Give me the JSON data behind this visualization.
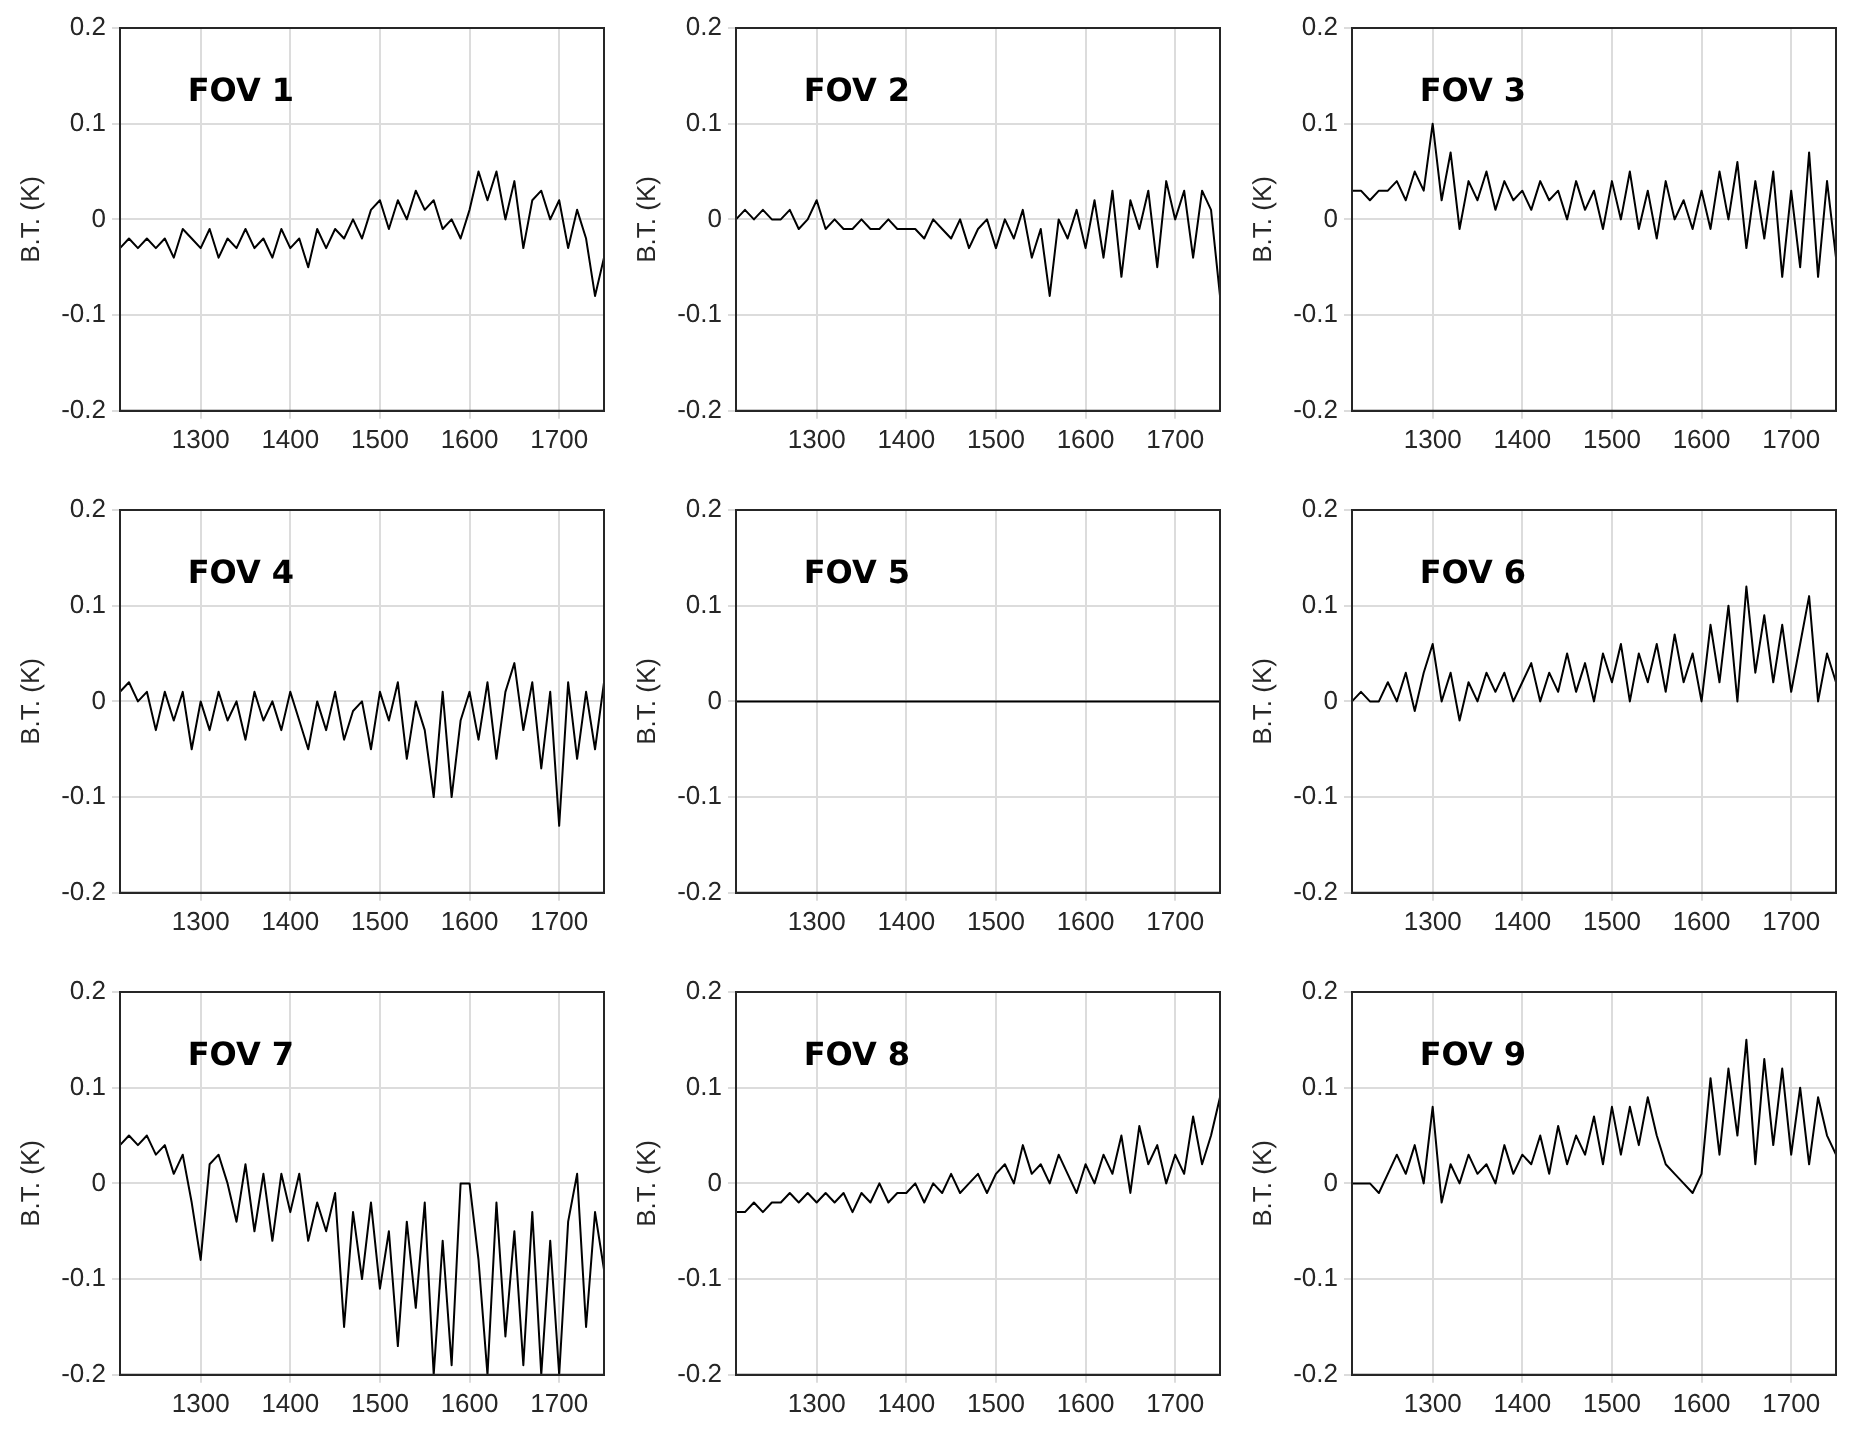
{
  "chart_data": [
    {
      "type": "line",
      "ylabel": "B.T. (K)",
      "annotations": [
        "FOV 1"
      ],
      "color": "#000000",
      "marker": "none",
      "grid": true,
      "xlim": [
        1210,
        1750
      ],
      "ylim": [
        -0.2,
        0.2
      ],
      "xticks": [
        1300,
        1400,
        1500,
        1600,
        1700
      ],
      "yticks": [
        -0.2,
        -0.1,
        0,
        0.1,
        0.2
      ],
      "x": [
        1210,
        1220,
        1230,
        1240,
        1250,
        1260,
        1270,
        1280,
        1290,
        1300,
        1310,
        1320,
        1330,
        1340,
        1350,
        1360,
        1370,
        1380,
        1390,
        1400,
        1410,
        1420,
        1430,
        1440,
        1450,
        1460,
        1470,
        1480,
        1490,
        1500,
        1510,
        1520,
        1530,
        1540,
        1550,
        1560,
        1570,
        1580,
        1590,
        1600,
        1610,
        1620,
        1630,
        1640,
        1650,
        1660,
        1670,
        1680,
        1690,
        1700,
        1710,
        1720,
        1730,
        1740,
        1750
      ],
      "values": [
        -0.03,
        -0.02,
        -0.03,
        -0.02,
        -0.03,
        -0.02,
        -0.04,
        -0.01,
        -0.02,
        -0.03,
        -0.01,
        -0.04,
        -0.02,
        -0.03,
        -0.01,
        -0.03,
        -0.02,
        -0.04,
        -0.01,
        -0.03,
        -0.02,
        -0.05,
        -0.01,
        -0.03,
        -0.01,
        -0.02,
        0.0,
        -0.02,
        0.01,
        0.02,
        -0.01,
        0.02,
        0.0,
        0.03,
        0.01,
        0.02,
        -0.01,
        0.0,
        -0.02,
        0.01,
        0.05,
        0.02,
        0.05,
        0.0,
        0.04,
        -0.03,
        0.02,
        0.03,
        0.0,
        0.02,
        -0.03,
        0.01,
        -0.02,
        -0.08,
        -0.04
      ]
    },
    {
      "type": "line",
      "ylabel": "B.T. (K)",
      "annotations": [
        "FOV 2"
      ],
      "color": "#000000",
      "marker": "none",
      "grid": true,
      "xlim": [
        1210,
        1750
      ],
      "ylim": [
        -0.2,
        0.2
      ],
      "xticks": [
        1300,
        1400,
        1500,
        1600,
        1700
      ],
      "yticks": [
        -0.2,
        -0.1,
        0,
        0.1,
        0.2
      ],
      "x": [
        1210,
        1220,
        1230,
        1240,
        1250,
        1260,
        1270,
        1280,
        1290,
        1300,
        1310,
        1320,
        1330,
        1340,
        1350,
        1360,
        1370,
        1380,
        1390,
        1400,
        1410,
        1420,
        1430,
        1440,
        1450,
        1460,
        1470,
        1480,
        1490,
        1500,
        1510,
        1520,
        1530,
        1540,
        1550,
        1560,
        1570,
        1580,
        1590,
        1600,
        1610,
        1620,
        1630,
        1640,
        1650,
        1660,
        1670,
        1680,
        1690,
        1700,
        1710,
        1720,
        1730,
        1740,
        1750
      ],
      "values": [
        0.0,
        0.01,
        0.0,
        0.01,
        0.0,
        0.0,
        0.01,
        -0.01,
        0.0,
        0.02,
        -0.01,
        0.0,
        -0.01,
        -0.01,
        0.0,
        -0.01,
        -0.01,
        0.0,
        -0.01,
        -0.01,
        -0.01,
        -0.02,
        0.0,
        -0.01,
        -0.02,
        0.0,
        -0.03,
        -0.01,
        0.0,
        -0.03,
        0.0,
        -0.02,
        0.01,
        -0.04,
        -0.01,
        -0.08,
        0.0,
        -0.02,
        0.01,
        -0.03,
        0.02,
        -0.04,
        0.03,
        -0.06,
        0.02,
        -0.01,
        0.03,
        -0.05,
        0.04,
        0.0,
        0.03,
        -0.04,
        0.03,
        0.01,
        -0.08
      ]
    },
    {
      "type": "line",
      "ylabel": "B.T. (K)",
      "annotations": [
        "FOV 3"
      ],
      "color": "#000000",
      "marker": "none",
      "grid": true,
      "xlim": [
        1210,
        1750
      ],
      "ylim": [
        -0.2,
        0.2
      ],
      "xticks": [
        1300,
        1400,
        1500,
        1600,
        1700
      ],
      "yticks": [
        -0.2,
        -0.1,
        0,
        0.1,
        0.2
      ],
      "x": [
        1210,
        1220,
        1230,
        1240,
        1250,
        1260,
        1270,
        1280,
        1290,
        1300,
        1310,
        1320,
        1330,
        1340,
        1350,
        1360,
        1370,
        1380,
        1390,
        1400,
        1410,
        1420,
        1430,
        1440,
        1450,
        1460,
        1470,
        1480,
        1490,
        1500,
        1510,
        1520,
        1530,
        1540,
        1550,
        1560,
        1570,
        1580,
        1590,
        1600,
        1610,
        1620,
        1630,
        1640,
        1650,
        1660,
        1670,
        1680,
        1690,
        1700,
        1710,
        1720,
        1730,
        1740,
        1750
      ],
      "values": [
        0.03,
        0.03,
        0.02,
        0.03,
        0.03,
        0.04,
        0.02,
        0.05,
        0.03,
        0.1,
        0.02,
        0.07,
        -0.01,
        0.04,
        0.02,
        0.05,
        0.01,
        0.04,
        0.02,
        0.03,
        0.01,
        0.04,
        0.02,
        0.03,
        0.0,
        0.04,
        0.01,
        0.03,
        -0.01,
        0.04,
        0.0,
        0.05,
        -0.01,
        0.03,
        -0.02,
        0.04,
        0.0,
        0.02,
        -0.01,
        0.03,
        -0.01,
        0.05,
        0.0,
        0.06,
        -0.03,
        0.04,
        -0.02,
        0.05,
        -0.06,
        0.03,
        -0.05,
        0.07,
        -0.06,
        0.04,
        -0.04
      ]
    },
    {
      "type": "line",
      "ylabel": "B.T. (K)",
      "annotations": [
        "FOV 4"
      ],
      "color": "#000000",
      "marker": "none",
      "grid": true,
      "xlim": [
        1210,
        1750
      ],
      "ylim": [
        -0.2,
        0.2
      ],
      "xticks": [
        1300,
        1400,
        1500,
        1600,
        1700
      ],
      "yticks": [
        -0.2,
        -0.1,
        0,
        0.1,
        0.2
      ],
      "x": [
        1210,
        1220,
        1230,
        1240,
        1250,
        1260,
        1270,
        1280,
        1290,
        1300,
        1310,
        1320,
        1330,
        1340,
        1350,
        1360,
        1370,
        1380,
        1390,
        1400,
        1410,
        1420,
        1430,
        1440,
        1450,
        1460,
        1470,
        1480,
        1490,
        1500,
        1510,
        1520,
        1530,
        1540,
        1550,
        1560,
        1570,
        1580,
        1590,
        1600,
        1610,
        1620,
        1630,
        1640,
        1650,
        1660,
        1670,
        1680,
        1690,
        1700,
        1710,
        1720,
        1730,
        1740,
        1750
      ],
      "values": [
        0.01,
        0.02,
        0.0,
        0.01,
        -0.03,
        0.01,
        -0.02,
        0.01,
        -0.05,
        0.0,
        -0.03,
        0.01,
        -0.02,
        0.0,
        -0.04,
        0.01,
        -0.02,
        0.0,
        -0.03,
        0.01,
        -0.02,
        -0.05,
        0.0,
        -0.03,
        0.01,
        -0.04,
        -0.01,
        0.0,
        -0.05,
        0.01,
        -0.02,
        0.02,
        -0.06,
        0.0,
        -0.03,
        -0.1,
        0.01,
        -0.1,
        -0.02,
        0.01,
        -0.04,
        0.02,
        -0.06,
        0.01,
        0.04,
        -0.03,
        0.02,
        -0.07,
        0.01,
        -0.13,
        0.02,
        -0.06,
        0.01,
        -0.05,
        0.02
      ]
    },
    {
      "type": "line",
      "ylabel": "B.T. (K)",
      "annotations": [
        "FOV 5"
      ],
      "color": "#000000",
      "marker": "none",
      "grid": true,
      "xlim": [
        1210,
        1750
      ],
      "ylim": [
        -0.2,
        0.2
      ],
      "xticks": [
        1300,
        1400,
        1500,
        1600,
        1700
      ],
      "yticks": [
        -0.2,
        -0.1,
        0,
        0.1,
        0.2
      ],
      "x": [
        1210,
        1750
      ],
      "values": [
        0,
        0
      ]
    },
    {
      "type": "line",
      "ylabel": "B.T. (K)",
      "annotations": [
        "FOV 6"
      ],
      "color": "#000000",
      "marker": "none",
      "grid": true,
      "xlim": [
        1210,
        1750
      ],
      "ylim": [
        -0.2,
        0.2
      ],
      "xticks": [
        1300,
        1400,
        1500,
        1600,
        1700
      ],
      "yticks": [
        -0.2,
        -0.1,
        0,
        0.1,
        0.2
      ],
      "x": [
        1210,
        1220,
        1230,
        1240,
        1250,
        1260,
        1270,
        1280,
        1290,
        1300,
        1310,
        1320,
        1330,
        1340,
        1350,
        1360,
        1370,
        1380,
        1390,
        1400,
        1410,
        1420,
        1430,
        1440,
        1450,
        1460,
        1470,
        1480,
        1490,
        1500,
        1510,
        1520,
        1530,
        1540,
        1550,
        1560,
        1570,
        1580,
        1590,
        1600,
        1610,
        1620,
        1630,
        1640,
        1650,
        1660,
        1670,
        1680,
        1690,
        1700,
        1710,
        1720,
        1730,
        1740,
        1750
      ],
      "values": [
        0.0,
        0.01,
        0.0,
        0.0,
        0.02,
        0.0,
        0.03,
        -0.01,
        0.03,
        0.06,
        0.0,
        0.03,
        -0.02,
        0.02,
        0.0,
        0.03,
        0.01,
        0.03,
        0.0,
        0.02,
        0.04,
        0.0,
        0.03,
        0.01,
        0.05,
        0.01,
        0.04,
        0.0,
        0.05,
        0.02,
        0.06,
        0.0,
        0.05,
        0.02,
        0.06,
        0.01,
        0.07,
        0.02,
        0.05,
        0.0,
        0.08,
        0.02,
        0.1,
        0.0,
        0.12,
        0.03,
        0.09,
        0.02,
        0.08,
        0.01,
        0.06,
        0.11,
        0.0,
        0.05,
        0.02
      ]
    },
    {
      "type": "line",
      "ylabel": "B.T. (K)",
      "annotations": [
        "FOV 7"
      ],
      "color": "#000000",
      "marker": "none",
      "grid": true,
      "xlim": [
        1210,
        1750
      ],
      "ylim": [
        -0.2,
        0.2
      ],
      "xticks": [
        1300,
        1400,
        1500,
        1600,
        1700
      ],
      "yticks": [
        -0.2,
        -0.1,
        0,
        0.1,
        0.2
      ],
      "x": [
        1210,
        1220,
        1230,
        1240,
        1250,
        1260,
        1270,
        1280,
        1290,
        1300,
        1310,
        1320,
        1330,
        1340,
        1350,
        1360,
        1370,
        1380,
        1390,
        1400,
        1410,
        1420,
        1430,
        1440,
        1450,
        1460,
        1470,
        1480,
        1490,
        1500,
        1510,
        1520,
        1530,
        1540,
        1550,
        1560,
        1570,
        1580,
        1590,
        1600,
        1610,
        1620,
        1630,
        1640,
        1650,
        1660,
        1670,
        1680,
        1690,
        1700,
        1710,
        1720,
        1730,
        1740,
        1750
      ],
      "values": [
        0.04,
        0.05,
        0.04,
        0.05,
        0.03,
        0.04,
        0.01,
        0.03,
        -0.02,
        -0.08,
        0.02,
        0.03,
        0.0,
        -0.04,
        0.02,
        -0.05,
        0.01,
        -0.06,
        0.01,
        -0.03,
        0.01,
        -0.06,
        -0.02,
        -0.05,
        -0.01,
        -0.15,
        -0.03,
        -0.1,
        -0.02,
        -0.11,
        -0.05,
        -0.17,
        -0.04,
        -0.13,
        -0.02,
        -0.2,
        -0.06,
        -0.19,
        0.0,
        0.0,
        -0.08,
        -0.2,
        -0.02,
        -0.16,
        -0.05,
        -0.19,
        -0.03,
        -0.2,
        -0.06,
        -0.2,
        -0.04,
        0.01,
        -0.15,
        -0.03,
        -0.09
      ]
    },
    {
      "type": "line",
      "ylabel": "B.T. (K)",
      "annotations": [
        "FOV 8"
      ],
      "color": "#000000",
      "marker": "none",
      "grid": true,
      "xlim": [
        1210,
        1750
      ],
      "ylim": [
        -0.2,
        0.2
      ],
      "xticks": [
        1300,
        1400,
        1500,
        1600,
        1700
      ],
      "yticks": [
        -0.2,
        -0.1,
        0,
        0.1,
        0.2
      ],
      "x": [
        1210,
        1220,
        1230,
        1240,
        1250,
        1260,
        1270,
        1280,
        1290,
        1300,
        1310,
        1320,
        1330,
        1340,
        1350,
        1360,
        1370,
        1380,
        1390,
        1400,
        1410,
        1420,
        1430,
        1440,
        1450,
        1460,
        1470,
        1480,
        1490,
        1500,
        1510,
        1520,
        1530,
        1540,
        1550,
        1560,
        1570,
        1580,
        1590,
        1600,
        1610,
        1620,
        1630,
        1640,
        1650,
        1660,
        1670,
        1680,
        1690,
        1700,
        1710,
        1720,
        1730,
        1740,
        1750
      ],
      "values": [
        -0.03,
        -0.03,
        -0.02,
        -0.03,
        -0.02,
        -0.02,
        -0.01,
        -0.02,
        -0.01,
        -0.02,
        -0.01,
        -0.02,
        -0.01,
        -0.03,
        -0.01,
        -0.02,
        0.0,
        -0.02,
        -0.01,
        -0.01,
        0.0,
        -0.02,
        0.0,
        -0.01,
        0.01,
        -0.01,
        0.0,
        0.01,
        -0.01,
        0.01,
        0.02,
        0.0,
        0.04,
        0.01,
        0.02,
        0.0,
        0.03,
        0.01,
        -0.01,
        0.02,
        0.0,
        0.03,
        0.01,
        0.05,
        -0.01,
        0.06,
        0.02,
        0.04,
        0.0,
        0.03,
        0.01,
        0.07,
        0.02,
        0.05,
        0.09
      ]
    },
    {
      "type": "line",
      "ylabel": "B.T. (K)",
      "annotations": [
        "FOV 9"
      ],
      "color": "#000000",
      "marker": "none",
      "grid": true,
      "xlim": [
        1210,
        1750
      ],
      "ylim": [
        -0.2,
        0.2
      ],
      "xticks": [
        1300,
        1400,
        1500,
        1600,
        1700
      ],
      "yticks": [
        -0.2,
        -0.1,
        0,
        0.1,
        0.2
      ],
      "x": [
        1210,
        1220,
        1230,
        1240,
        1250,
        1260,
        1270,
        1280,
        1290,
        1300,
        1310,
        1320,
        1330,
        1340,
        1350,
        1360,
        1370,
        1380,
        1390,
        1400,
        1410,
        1420,
        1430,
        1440,
        1450,
        1460,
        1470,
        1480,
        1490,
        1500,
        1510,
        1520,
        1530,
        1540,
        1550,
        1560,
        1570,
        1580,
        1590,
        1600,
        1610,
        1620,
        1630,
        1640,
        1650,
        1660,
        1670,
        1680,
        1690,
        1700,
        1710,
        1720,
        1730,
        1740,
        1750
      ],
      "values": [
        0.0,
        0.0,
        0.0,
        -0.01,
        0.01,
        0.03,
        0.01,
        0.04,
        0.0,
        0.08,
        -0.02,
        0.02,
        0.0,
        0.03,
        0.01,
        0.02,
        0.0,
        0.04,
        0.01,
        0.03,
        0.02,
        0.05,
        0.01,
        0.06,
        0.02,
        0.05,
        0.03,
        0.07,
        0.02,
        0.08,
        0.03,
        0.08,
        0.04,
        0.09,
        0.05,
        0.02,
        0.01,
        0.0,
        -0.01,
        0.01,
        0.11,
        0.03,
        0.12,
        0.05,
        0.15,
        0.02,
        0.13,
        0.04,
        0.12,
        0.03,
        0.1,
        0.02,
        0.09,
        0.05,
        0.03
      ]
    }
  ]
}
